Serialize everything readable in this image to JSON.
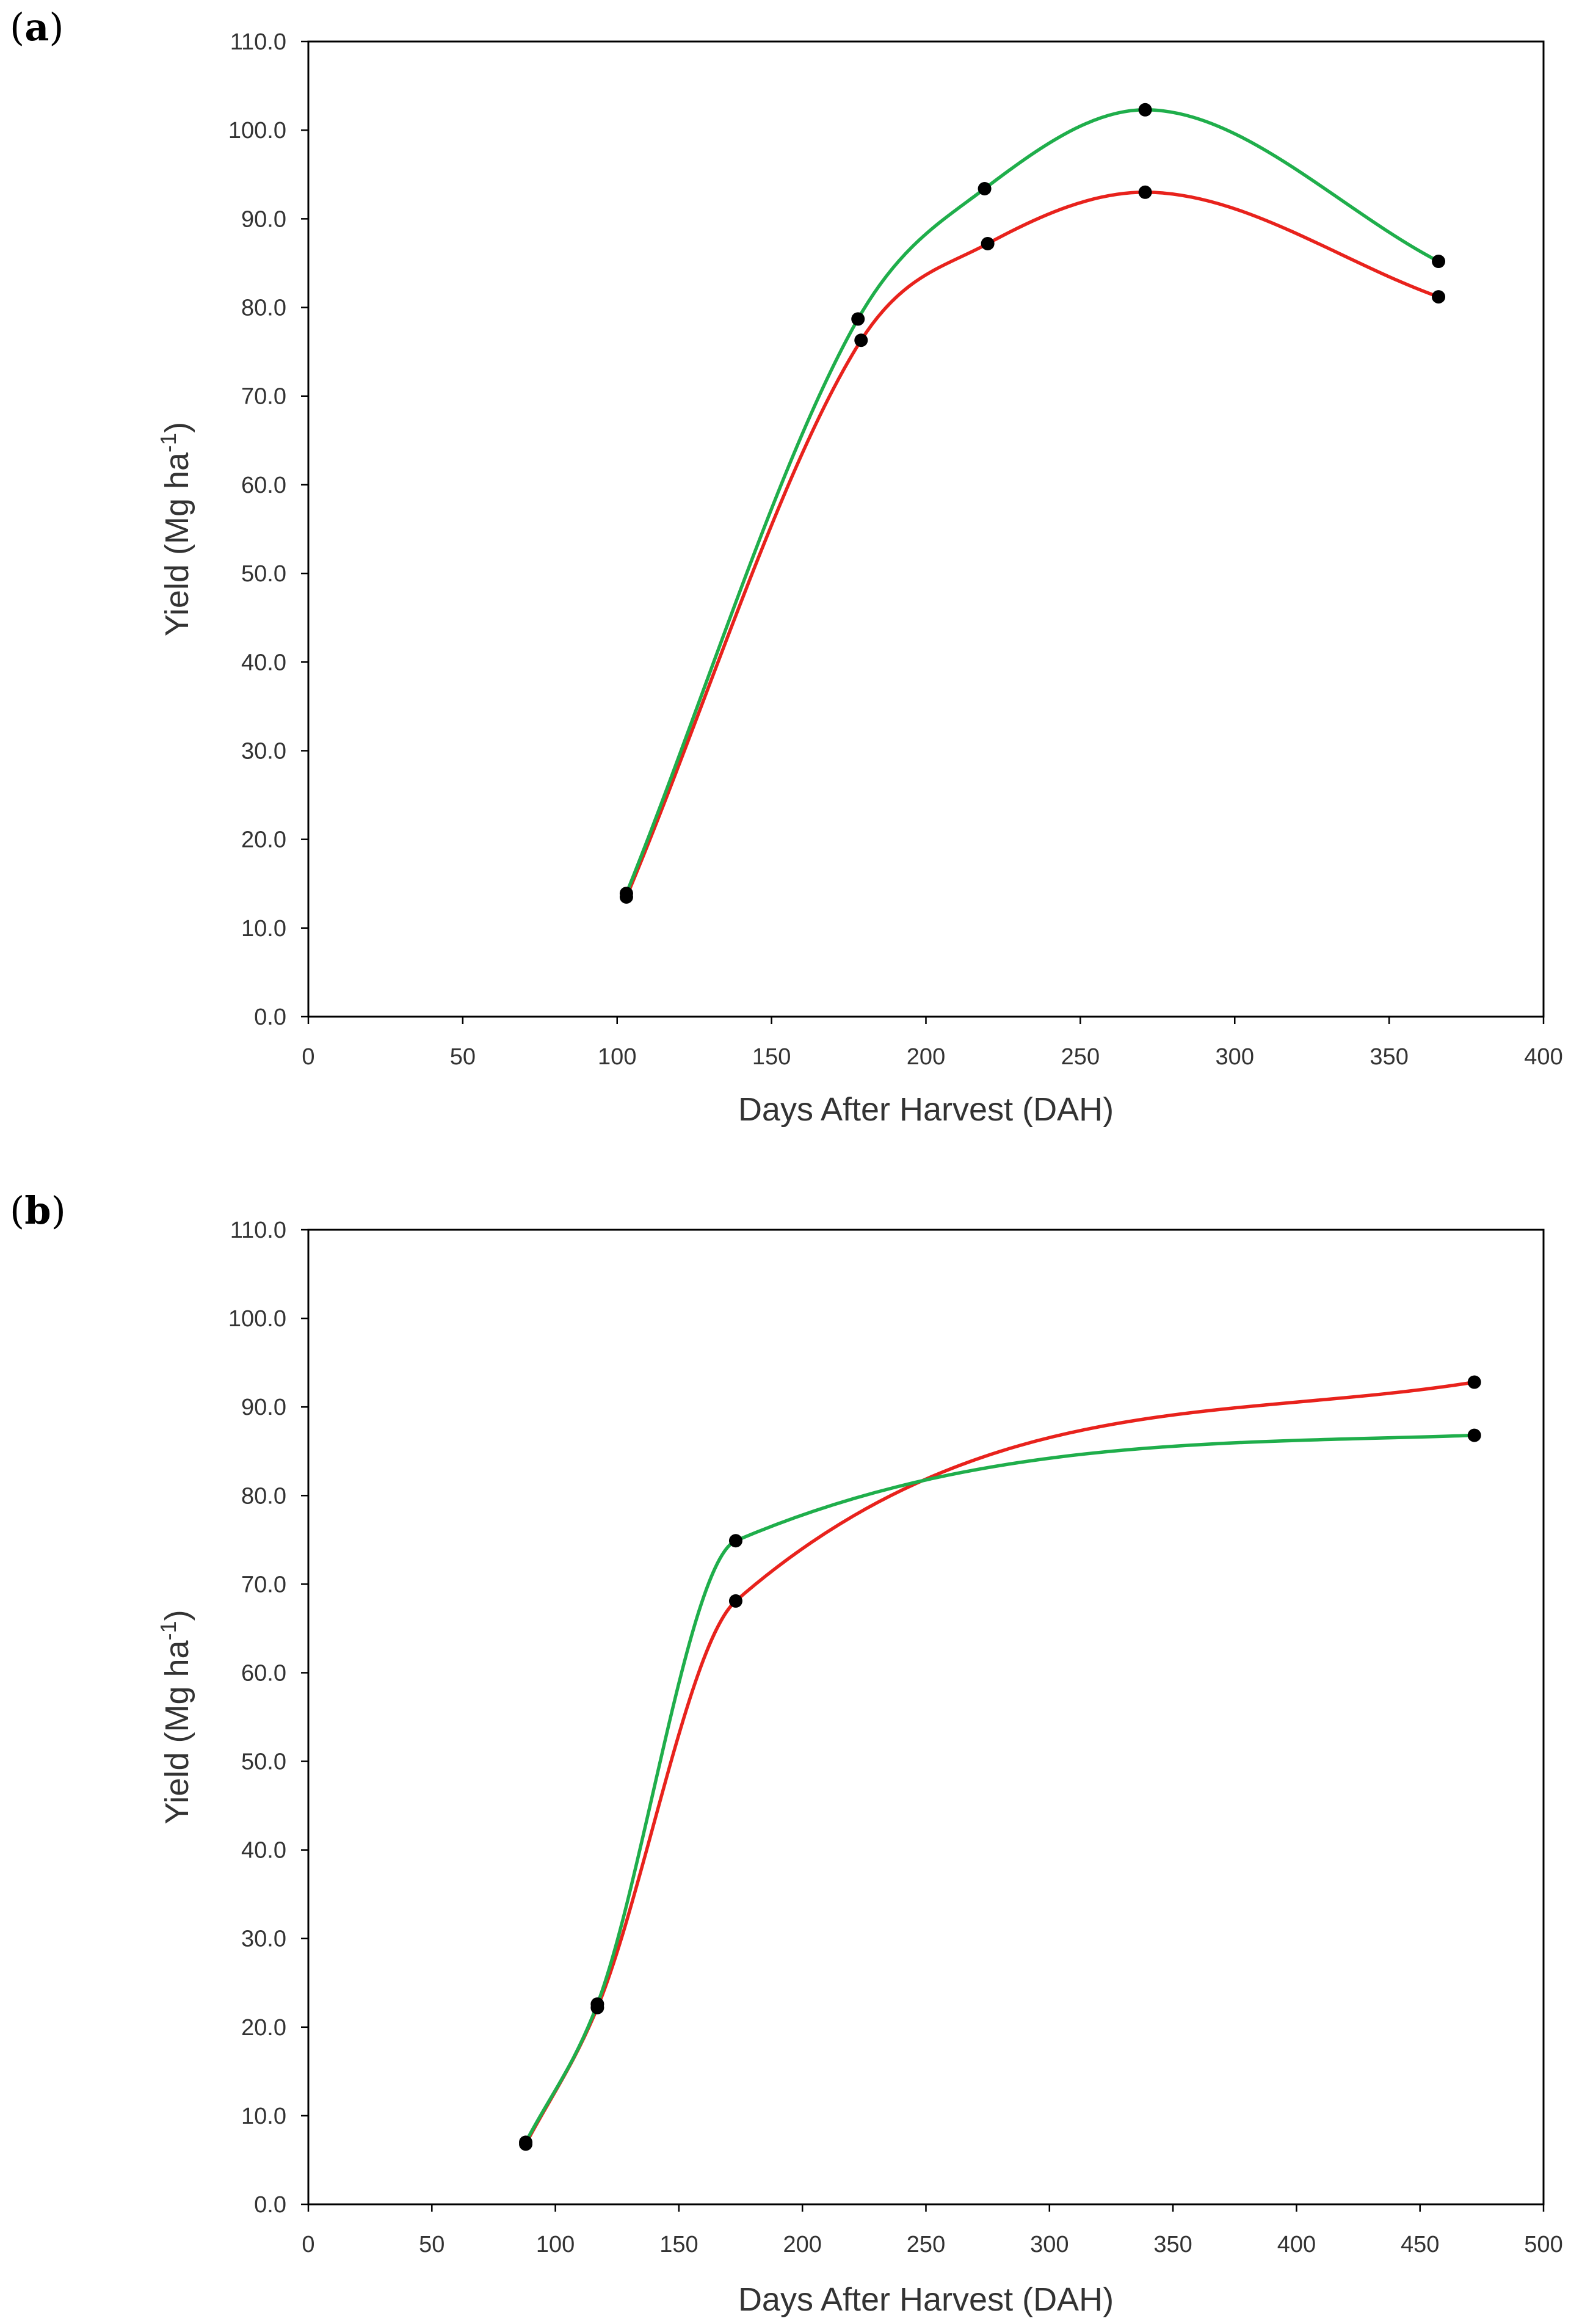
{
  "chart_data": [
    {
      "panel_label": "a",
      "type": "line",
      "xlabel": "Days After Harvest (DAH)",
      "ylabel": "Yield (Mg ha",
      "ylabel_sup": "-1",
      "ylabel_end": ")",
      "xlim": [
        0,
        400
      ],
      "ylim": [
        0,
        110
      ],
      "xticks": [
        0,
        50,
        100,
        150,
        200,
        250,
        300,
        350,
        400
      ],
      "yticks": [
        0,
        10,
        20,
        30,
        40,
        50,
        60,
        70,
        80,
        90,
        100,
        110
      ],
      "ytick_labels": [
        "0.0",
        "10.0",
        "20.0",
        "30.0",
        "40.0",
        "50.0",
        "60.0",
        "70.0",
        "80.0",
        "90.0",
        "100.0",
        "110.0"
      ],
      "series": [
        {
          "name": "red",
          "color": "#e8221c",
          "x": [
            103,
            179,
            220,
            271,
            366
          ],
          "y": [
            13.5,
            76.3,
            87.2,
            93.0,
            81.2
          ]
        },
        {
          "name": "green",
          "color": "#1fae4b",
          "x": [
            103,
            178,
            219,
            271,
            366
          ],
          "y": [
            13.9,
            78.7,
            93.4,
            102.3,
            85.2
          ]
        }
      ]
    },
    {
      "panel_label": "b",
      "type": "line",
      "xlabel": "Days After Harvest (DAH)",
      "ylabel": "Yield (Mg ha",
      "ylabel_sup": "-1",
      "ylabel_end": ")",
      "xlim": [
        0,
        500
      ],
      "ylim": [
        0,
        110
      ],
      "xticks": [
        0,
        50,
        100,
        150,
        200,
        250,
        300,
        350,
        400,
        450,
        500
      ],
      "yticks": [
        0,
        10,
        20,
        30,
        40,
        50,
        60,
        70,
        80,
        90,
        100,
        110
      ],
      "ytick_labels": [
        "0.0",
        "10.0",
        "20.0",
        "30.0",
        "40.0",
        "50.0",
        "60.0",
        "70.0",
        "80.0",
        "90.0",
        "100.0",
        "110.0"
      ],
      "series": [
        {
          "name": "red",
          "color": "#e8221c",
          "x": [
            88,
            117,
            173,
            472
          ],
          "y": [
            6.8,
            22.2,
            68.1,
            92.8
          ]
        },
        {
          "name": "green",
          "color": "#1fae4b",
          "x": [
            88,
            117,
            173,
            472
          ],
          "y": [
            7.0,
            22.6,
            74.9,
            86.8
          ]
        }
      ]
    }
  ]
}
